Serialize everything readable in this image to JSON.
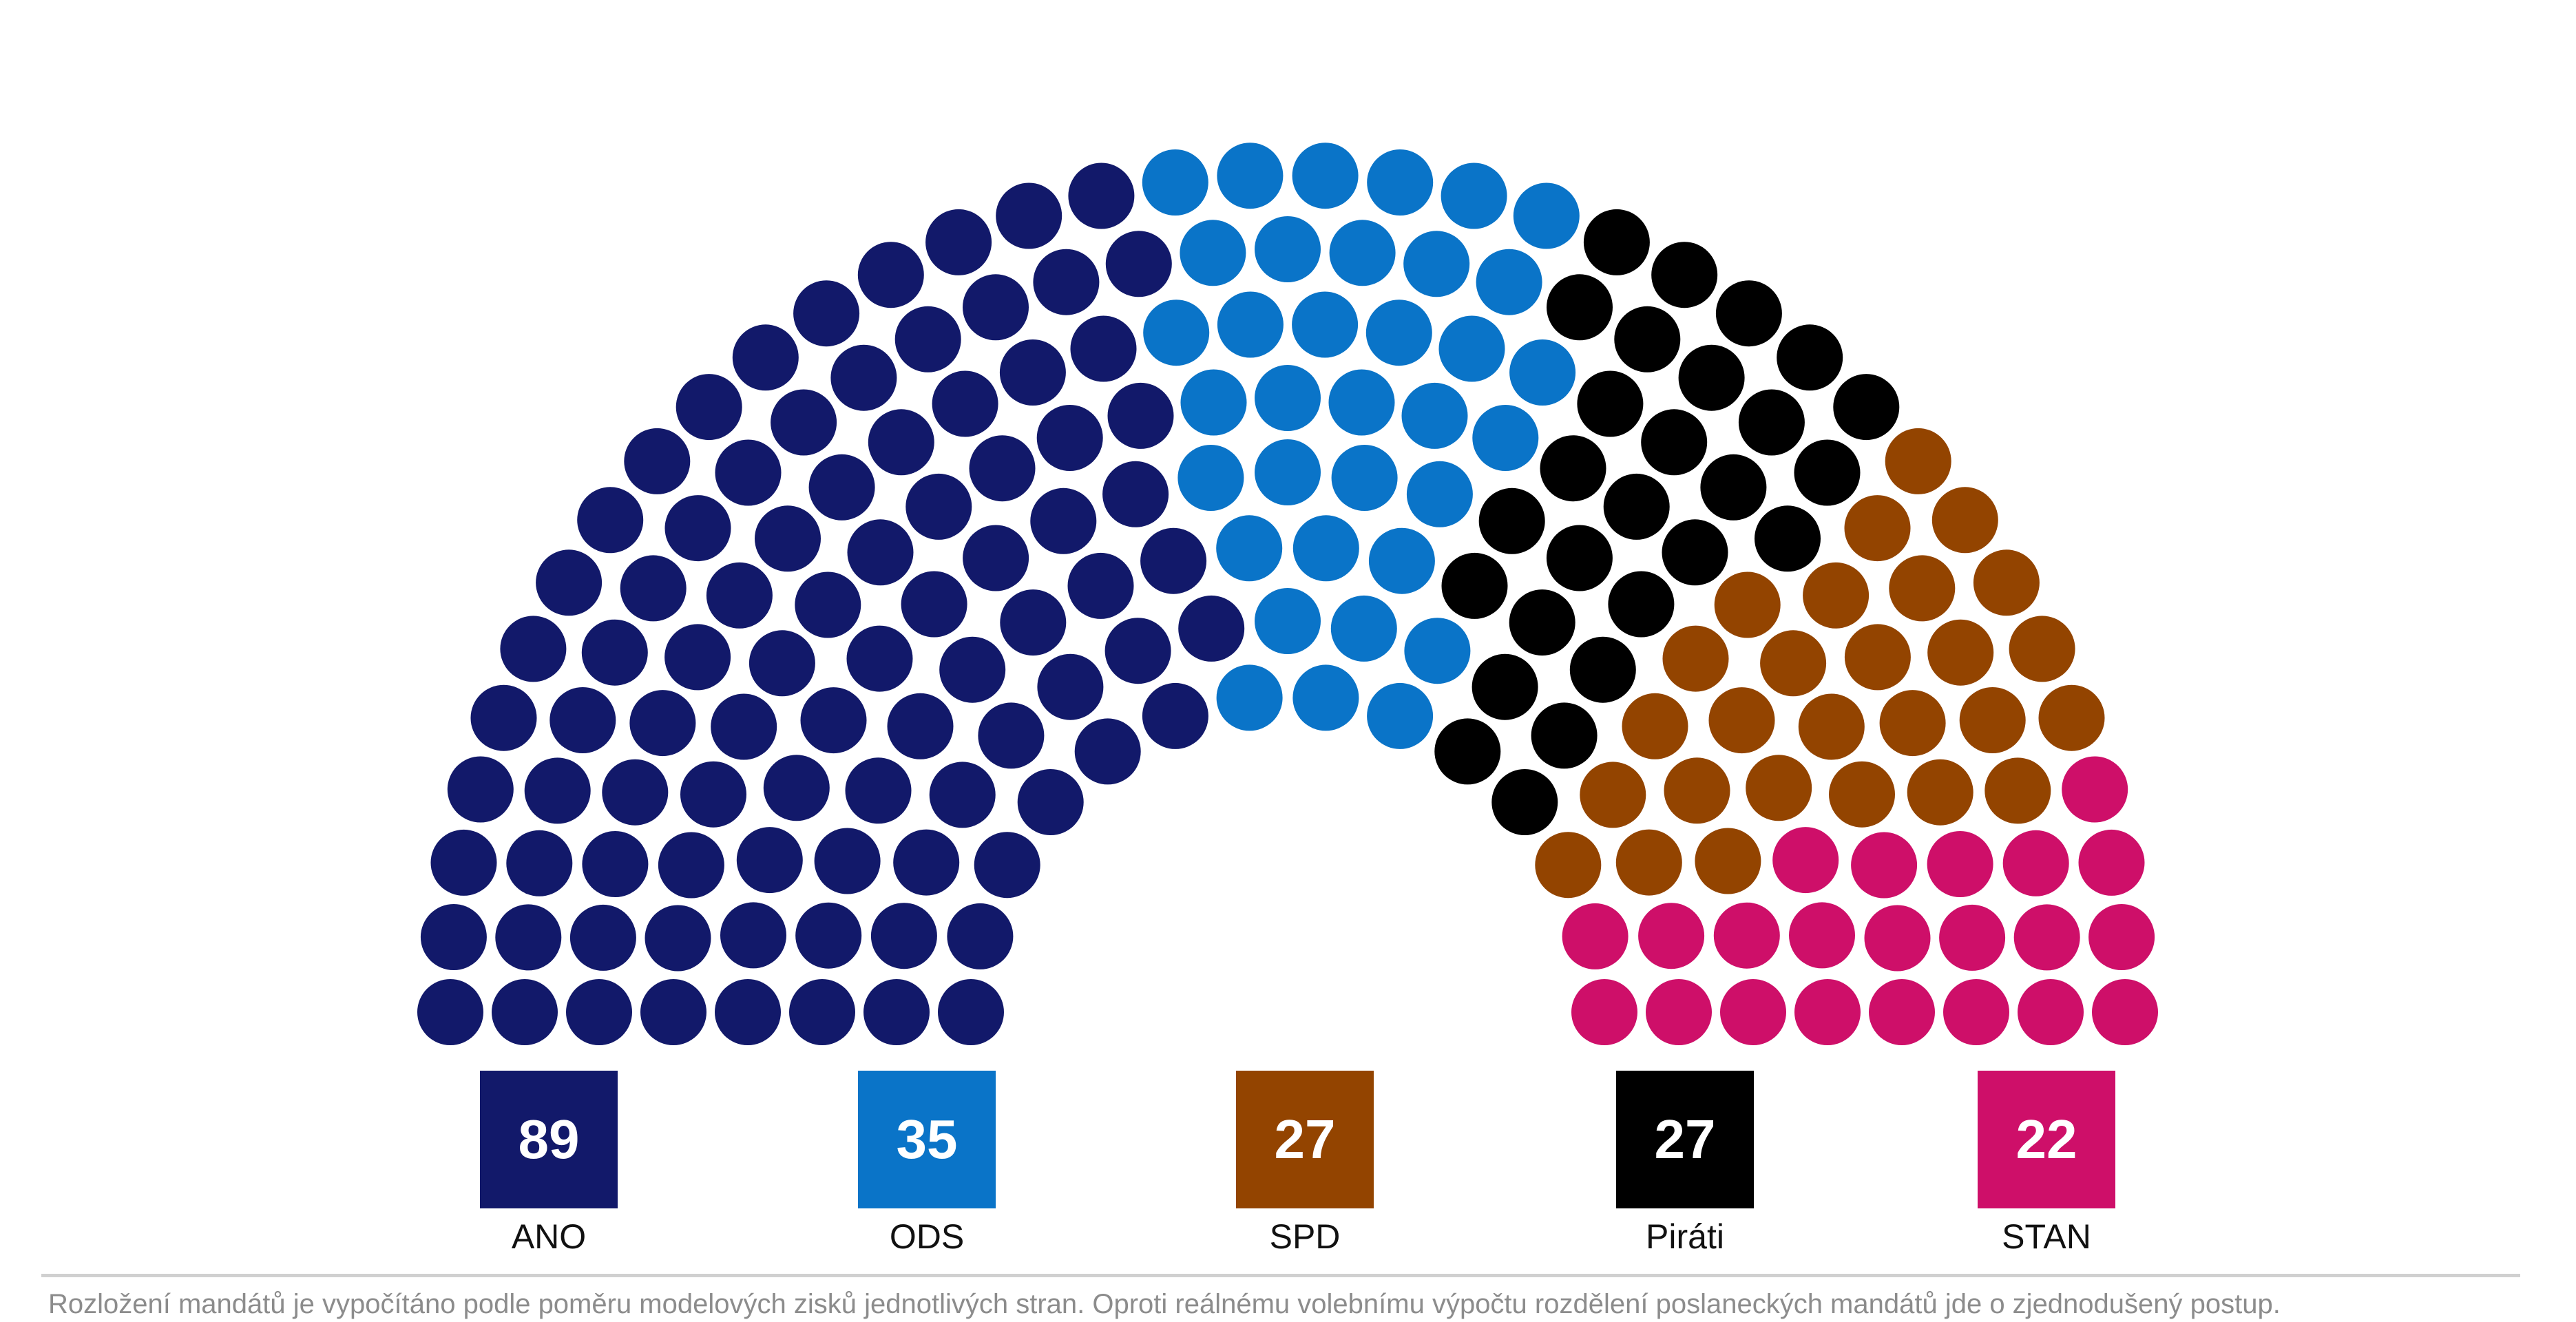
{
  "chart_data": {
    "type": "parliament",
    "title": "",
    "total_seats": 200,
    "series": [
      {
        "name": "ANO",
        "value": 89,
        "color": "#12196a"
      },
      {
        "name": "ODS",
        "value": 35,
        "color": "#0a74c8"
      },
      {
        "name": "Piráti",
        "value": 27,
        "color": "#000000"
      },
      {
        "name": "SPD",
        "value": 27,
        "color": "#934400"
      },
      {
        "name": "STAN",
        "value": 22,
        "color": "#ce0f69"
      }
    ]
  },
  "legend": [
    {
      "label": "ANO",
      "value": "89",
      "color": "#12196a"
    },
    {
      "label": "ODS",
      "value": "35",
      "color": "#0a74c8"
    },
    {
      "label": "SPD",
      "value": "27",
      "color": "#934400"
    },
    {
      "label": "Piráti",
      "value": "27",
      "color": "#000000"
    },
    {
      "label": "STAN",
      "value": "22",
      "color": "#ce0f69"
    }
  ],
  "footnote": "Rozložení mandátů je vypočítáno podle poměru modelových zisků jednotlivých stran. Oproti reálnému volebnímu výpočtu rozdělení poslaneckých mandátů jde o zjednodušený postup."
}
